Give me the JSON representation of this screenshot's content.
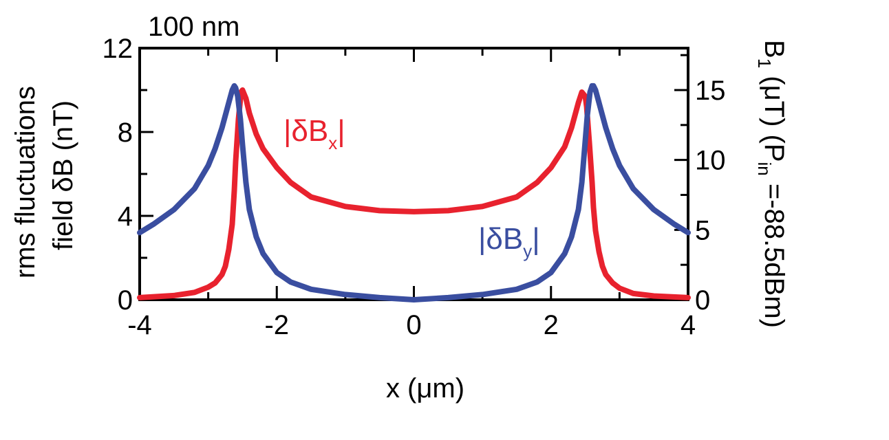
{
  "chart_data": {
    "type": "line",
    "annotation_top_left": "100 nm",
    "xlabel": "x (μm)",
    "ylabel_left_line1": "rms fluctuations",
    "ylabel_left_line2": "field  δB (nT)",
    "ylabel_right": "B",
    "ylabel_right_sub": "1",
    "ylabel_right_rest": " (μT) (P",
    "ylabel_right_sub2": "in",
    "ylabel_right_end": " =-88.5dBm)",
    "xlim": [
      -4,
      4
    ],
    "ylim_left": [
      0,
      12
    ],
    "ylim_right": [
      0,
      18
    ],
    "x_ticks": [
      -4,
      -2,
      0,
      2,
      4
    ],
    "x_tick_labels": [
      "-4",
      "-2",
      "0",
      "2",
      "4"
    ],
    "y_left_ticks": [
      0,
      4,
      8,
      12
    ],
    "y_left_tick_labels": [
      "0",
      "4",
      "8",
      "12"
    ],
    "y_right_ticks": [
      0,
      5,
      10,
      15
    ],
    "y_right_tick_labels": [
      "0",
      "5",
      "10",
      "15"
    ],
    "series": [
      {
        "label_main": "|δB",
        "label_sub": "x",
        "label_end": "|",
        "color": "#e8222e",
        "x": [
          -4.0,
          -3.5,
          -3.2,
          -3.0,
          -2.9,
          -2.8,
          -2.75,
          -2.7,
          -2.65,
          -2.62,
          -2.6,
          -2.56,
          -2.52,
          -2.5,
          -2.45,
          -2.4,
          -2.3,
          -2.2,
          -2.0,
          -1.8,
          -1.5,
          -1.0,
          -0.5,
          0.0,
          0.5,
          1.0,
          1.5,
          1.8,
          2.0,
          2.2,
          2.3,
          2.4,
          2.45,
          2.5,
          2.52,
          2.56,
          2.6,
          2.62,
          2.65,
          2.7,
          2.75,
          2.8,
          2.9,
          3.0,
          3.2,
          3.5,
          4.0
        ],
        "y": [
          0.1,
          0.2,
          0.35,
          0.6,
          0.8,
          1.2,
          1.6,
          2.4,
          3.6,
          5.2,
          6.6,
          8.6,
          9.9,
          10.0,
          9.6,
          8.9,
          7.9,
          7.2,
          6.3,
          5.6,
          4.9,
          4.45,
          4.25,
          4.2,
          4.25,
          4.45,
          4.9,
          5.6,
          6.3,
          7.3,
          8.2,
          9.4,
          9.9,
          9.7,
          9.2,
          7.5,
          5.6,
          4.4,
          3.3,
          2.3,
          1.6,
          1.2,
          0.8,
          0.55,
          0.3,
          0.18,
          0.1
        ]
      },
      {
        "label_main": "|δB",
        "label_sub": "y",
        "label_end": "|",
        "color": "#3a4ea0",
        "x": [
          -4.0,
          -3.8,
          -3.5,
          -3.2,
          -3.0,
          -2.9,
          -2.8,
          -2.7,
          -2.65,
          -2.62,
          -2.6,
          -2.57,
          -2.53,
          -2.5,
          -2.45,
          -2.4,
          -2.3,
          -2.2,
          -2.0,
          -1.8,
          -1.5,
          -1.0,
          -0.5,
          0.0,
          0.5,
          1.0,
          1.5,
          1.8,
          2.0,
          2.2,
          2.3,
          2.4,
          2.45,
          2.5,
          2.53,
          2.57,
          2.6,
          2.62,
          2.65,
          2.7,
          2.8,
          2.9,
          3.0,
          3.2,
          3.5,
          3.8,
          4.0
        ],
        "y": [
          3.2,
          3.6,
          4.3,
          5.3,
          6.4,
          7.2,
          8.2,
          9.4,
          10.0,
          10.2,
          10.1,
          9.7,
          8.6,
          7.4,
          5.6,
          4.3,
          3.0,
          2.2,
          1.3,
          0.85,
          0.5,
          0.25,
          0.1,
          0.0,
          0.1,
          0.25,
          0.5,
          0.85,
          1.3,
          2.2,
          3.0,
          4.3,
          5.6,
          7.6,
          8.8,
          9.9,
          10.2,
          10.2,
          10.0,
          9.4,
          8.2,
          7.2,
          6.4,
          5.3,
          4.3,
          3.6,
          3.2
        ]
      }
    ]
  }
}
